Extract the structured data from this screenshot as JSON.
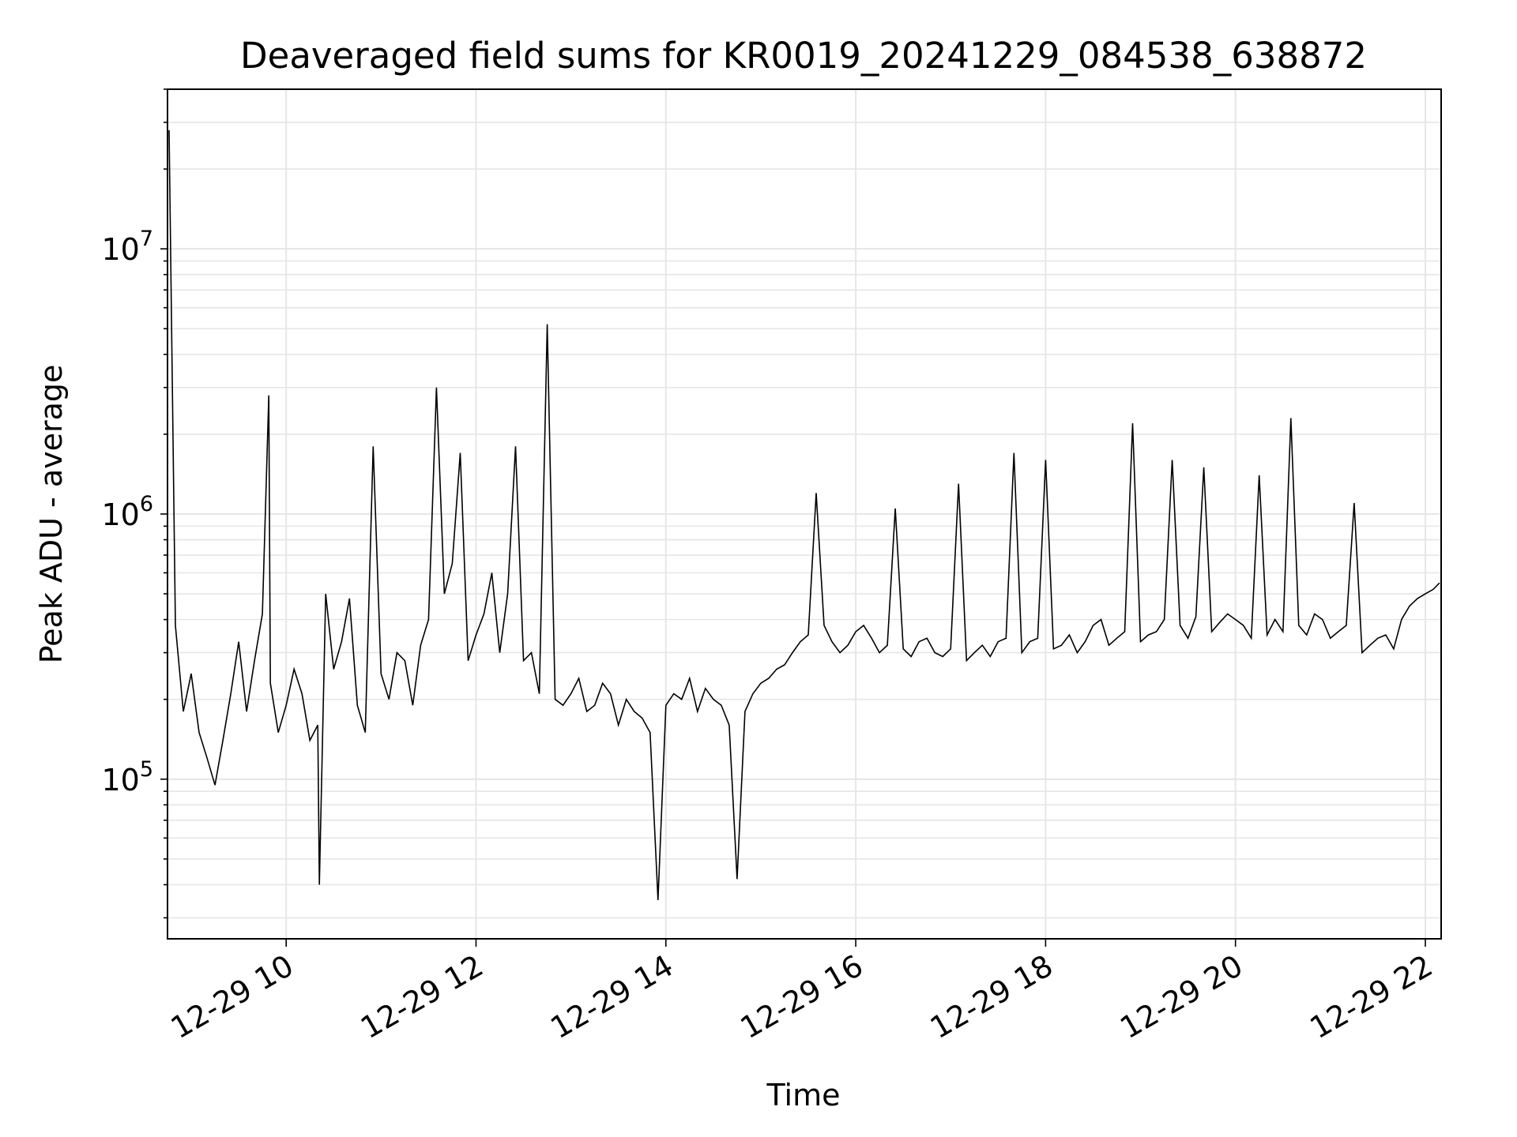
{
  "chart_data": {
    "type": "line",
    "title": "Deaveraged field sums for KR0019_20241229_084538_638872",
    "xlabel": "Time",
    "ylabel": "Peak ADU - average",
    "y_scale": "log",
    "grid": true,
    "series_color": "#000000",
    "grid_color": "#e6e6e6",
    "xlim": [
      "12-29 08:45",
      "12-29 22:10"
    ],
    "ylim": [
      25000,
      40000000
    ],
    "x_ticks": [
      "12-29 10",
      "12-29 12",
      "12-29 14",
      "12-29 16",
      "12-29 18",
      "12-29 20",
      "12-29 22"
    ],
    "y_ticks": [
      {
        "base": "10",
        "exp": "5"
      },
      {
        "base": "10",
        "exp": "6"
      },
      {
        "base": "10",
        "exp": "7"
      }
    ],
    "y_tick_values": [
      100000,
      1000000,
      10000000
    ],
    "series": [
      {
        "x": [
          "12-29 08:46",
          "12-29 08:50",
          "12-29 08:55",
          "12-29 09:00",
          "12-29 09:05",
          "12-29 09:10",
          "12-29 09:15",
          "12-29 09:20",
          "12-29 09:25",
          "12-29 09:30",
          "12-29 09:35",
          "12-29 09:40",
          "12-29 09:45",
          "12-29 09:49",
          "12-29 09:50",
          "12-29 09:55",
          "12-29 10:00",
          "12-29 10:05",
          "12-29 10:10",
          "12-29 10:15",
          "12-29 10:20",
          "12-29 10:21",
          "12-29 10:25",
          "12-29 10:30",
          "12-29 10:35",
          "12-29 10:40",
          "12-29 10:45",
          "12-29 10:50",
          "12-29 10:55",
          "12-29 11:00",
          "12-29 11:05",
          "12-29 11:10",
          "12-29 11:15",
          "12-29 11:20",
          "12-29 11:25",
          "12-29 11:30",
          "12-29 11:35",
          "12-29 11:40",
          "12-29 11:45",
          "12-29 11:50",
          "12-29 11:55",
          "12-29 12:00",
          "12-29 12:05",
          "12-29 12:10",
          "12-29 12:15",
          "12-29 12:20",
          "12-29 12:25",
          "12-29 12:30",
          "12-29 12:35",
          "12-29 12:40",
          "12-29 12:45",
          "12-29 12:50",
          "12-29 12:55",
          "12-29 13:00",
          "12-29 13:05",
          "12-29 13:10",
          "12-29 13:15",
          "12-29 13:20",
          "12-29 13:25",
          "12-29 13:30",
          "12-29 13:35",
          "12-29 13:40",
          "12-29 13:45",
          "12-29 13:50",
          "12-29 13:55",
          "12-29 14:00",
          "12-29 14:05",
          "12-29 14:10",
          "12-29 14:15",
          "12-29 14:20",
          "12-29 14:25",
          "12-29 14:30",
          "12-29 14:35",
          "12-29 14:40",
          "12-29 14:45",
          "12-29 14:50",
          "12-29 14:55",
          "12-29 15:00",
          "12-29 15:05",
          "12-29 15:10",
          "12-29 15:15",
          "12-29 15:20",
          "12-29 15:25",
          "12-29 15:30",
          "12-29 15:35",
          "12-29 15:40",
          "12-29 15:45",
          "12-29 15:50",
          "12-29 15:55",
          "12-29 16:00",
          "12-29 16:05",
          "12-29 16:10",
          "12-29 16:15",
          "12-29 16:20",
          "12-29 16:25",
          "12-29 16:30",
          "12-29 16:35",
          "12-29 16:40",
          "12-29 16:45",
          "12-29 16:50",
          "12-29 16:55",
          "12-29 17:00",
          "12-29 17:05",
          "12-29 17:10",
          "12-29 17:15",
          "12-29 17:20",
          "12-29 17:25",
          "12-29 17:30",
          "12-29 17:35",
          "12-29 17:40",
          "12-29 17:45",
          "12-29 17:50",
          "12-29 17:55",
          "12-29 18:00",
          "12-29 18:05",
          "12-29 18:10",
          "12-29 18:15",
          "12-29 18:20",
          "12-29 18:25",
          "12-29 18:30",
          "12-29 18:35",
          "12-29 18:40",
          "12-29 18:45",
          "12-29 18:50",
          "12-29 18:55",
          "12-29 19:00",
          "12-29 19:05",
          "12-29 19:10",
          "12-29 19:15",
          "12-29 19:20",
          "12-29 19:25",
          "12-29 19:30",
          "12-29 19:35",
          "12-29 19:40",
          "12-29 19:45",
          "12-29 19:50",
          "12-29 19:55",
          "12-29 20:00",
          "12-29 20:05",
          "12-29 20:10",
          "12-29 20:15",
          "12-29 20:20",
          "12-29 20:25",
          "12-29 20:30",
          "12-29 20:35",
          "12-29 20:40",
          "12-29 20:45",
          "12-29 20:50",
          "12-29 20:55",
          "12-29 21:00",
          "12-29 21:05",
          "12-29 21:10",
          "12-29 21:15",
          "12-29 21:20",
          "12-29 21:25",
          "12-29 21:30",
          "12-29 21:35",
          "12-29 21:40",
          "12-29 21:45",
          "12-29 21:50",
          "12-29 21:55",
          "12-29 22:00",
          "12-29 22:05",
          "12-29 22:09"
        ],
        "values": [
          28000000,
          380000,
          180000,
          250000,
          150000,
          120000,
          95000,
          140000,
          210000,
          330000,
          180000,
          280000,
          420000,
          2800000,
          230000,
          150000,
          190000,
          260000,
          210000,
          140000,
          160000,
          40000,
          500000,
          260000,
          330000,
          480000,
          190000,
          150000,
          1800000,
          250000,
          200000,
          300000,
          280000,
          190000,
          320000,
          400000,
          3000000,
          500000,
          650000,
          1700000,
          280000,
          350000,
          420000,
          600000,
          300000,
          500000,
          1800000,
          280000,
          300000,
          210000,
          5200000,
          200000,
          190000,
          210000,
          240000,
          180000,
          190000,
          230000,
          210000,
          160000,
          200000,
          180000,
          170000,
          150000,
          35000,
          190000,
          210000,
          200000,
          240000,
          180000,
          220000,
          200000,
          190000,
          160000,
          42000,
          180000,
          210000,
          230000,
          240000,
          260000,
          270000,
          300000,
          330000,
          350000,
          1200000,
          380000,
          330000,
          300000,
          320000,
          360000,
          380000,
          340000,
          300000,
          320000,
          1050000,
          310000,
          290000,
          330000,
          340000,
          300000,
          290000,
          310000,
          1300000,
          280000,
          300000,
          320000,
          290000,
          330000,
          340000,
          1700000,
          300000,
          330000,
          340000,
          1600000,
          310000,
          320000,
          350000,
          300000,
          330000,
          380000,
          400000,
          320000,
          340000,
          360000,
          2200000,
          330000,
          350000,
          360000,
          400000,
          1600000,
          380000,
          340000,
          410000,
          1500000,
          360000,
          390000,
          420000,
          400000,
          380000,
          340000,
          1400000,
          350000,
          400000,
          360000,
          2300000,
          380000,
          350000,
          420000,
          400000,
          340000,
          360000,
          380000,
          1100000,
          300000,
          320000,
          340000,
          350000,
          310000,
          400000,
          450000,
          480000,
          500000,
          520000,
          550000
        ]
      }
    ]
  }
}
